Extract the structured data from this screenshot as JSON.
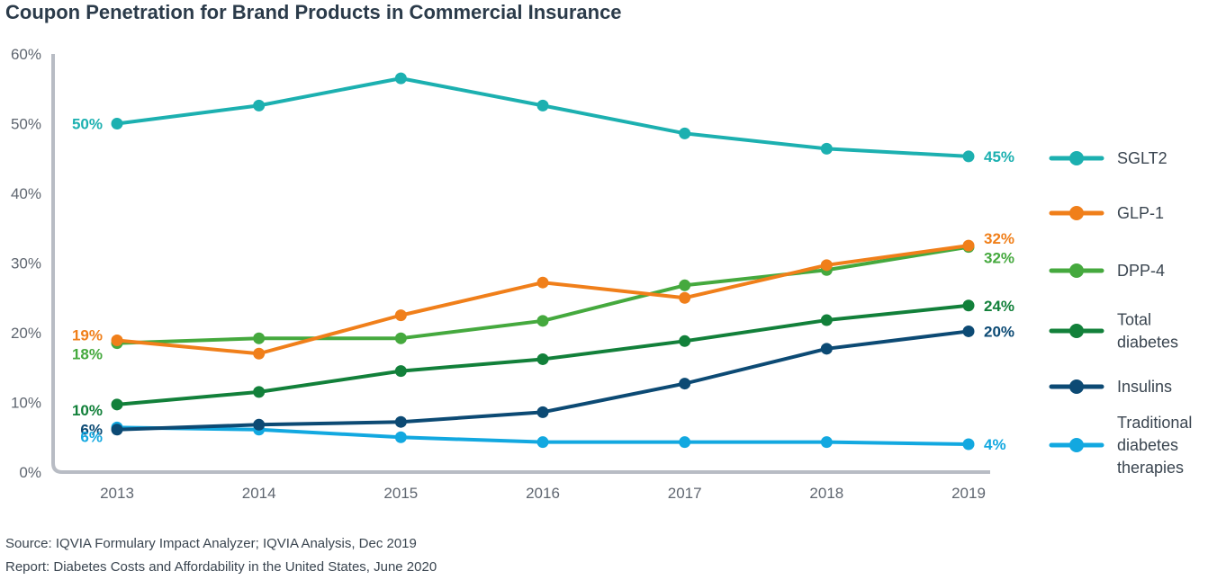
{
  "chart_data": {
    "type": "line",
    "title": "Coupon Penetration for Brand Products in Commercial Insurance",
    "xlabel": "",
    "ylabel": "",
    "categories": [
      "2013",
      "2014",
      "2015",
      "2016",
      "2017",
      "2018",
      "2019"
    ],
    "ylim": [
      0,
      60
    ],
    "yticks": [
      "0%",
      "10%",
      "20%",
      "30%",
      "40%",
      "50%",
      "60%"
    ],
    "grid": false,
    "legend_position": "right",
    "series": [
      {
        "name": "SGLT2",
        "color": "#1cb0b0",
        "values": [
          50,
          52.6,
          56.5,
          52.6,
          48.6,
          46.4,
          45.3
        ],
        "start_label": "50%",
        "end_label": "45%"
      },
      {
        "name": "GLP-1",
        "color": "#f07f1a",
        "values": [
          18.9,
          17.0,
          22.5,
          27.2,
          25.0,
          29.7,
          32.5
        ],
        "start_label": "19%",
        "end_label": "32%"
      },
      {
        "name": "DPP-4",
        "color": "#45a93e",
        "values": [
          18.5,
          19.2,
          19.2,
          21.7,
          26.8,
          29.0,
          32.3
        ],
        "start_label": "18%",
        "end_label": "32%"
      },
      {
        "name": "Total diabetes",
        "color": "#12803a",
        "values": [
          9.7,
          11.5,
          14.5,
          16.2,
          18.8,
          21.8,
          23.9
        ],
        "start_label": "10%",
        "end_label": "24%"
      },
      {
        "name": "Insulins",
        "color": "#0c4a74",
        "values": [
          6.1,
          6.8,
          7.2,
          8.6,
          12.7,
          17.7,
          20.2
        ],
        "start_label": "6%",
        "end_label": "20%"
      },
      {
        "name": "Traditional diabetes therapies",
        "color": "#12a8e0",
        "values": [
          6.4,
          6.1,
          5.0,
          4.3,
          4.3,
          4.3,
          4.0
        ],
        "start_label": "6%",
        "end_label": "4%"
      }
    ],
    "legend": [
      {
        "name": "SGLT2",
        "lines": [
          "SGLT2"
        ],
        "color": "#1cb0b0"
      },
      {
        "name": "GLP-1",
        "lines": [
          "GLP-1"
        ],
        "color": "#f07f1a"
      },
      {
        "name": "DPP-4",
        "lines": [
          "DPP-4"
        ],
        "color": "#45a93e"
      },
      {
        "name": "Total diabetes",
        "lines": [
          "Total",
          "diabetes"
        ],
        "color": "#12803a"
      },
      {
        "name": "Insulins",
        "lines": [
          "Insulins"
        ],
        "color": "#0c4a74"
      },
      {
        "name": "Traditional diabetes therapies",
        "lines": [
          "Traditional",
          "diabetes",
          "therapies"
        ],
        "color": "#12a8e0"
      }
    ]
  },
  "footer": {
    "source": "Source: IQVIA Formulary Impact Analyzer; IQVIA Analysis, Dec 2019",
    "report": "Report: Diabetes Costs and Affordability in the United States, June 2020"
  }
}
